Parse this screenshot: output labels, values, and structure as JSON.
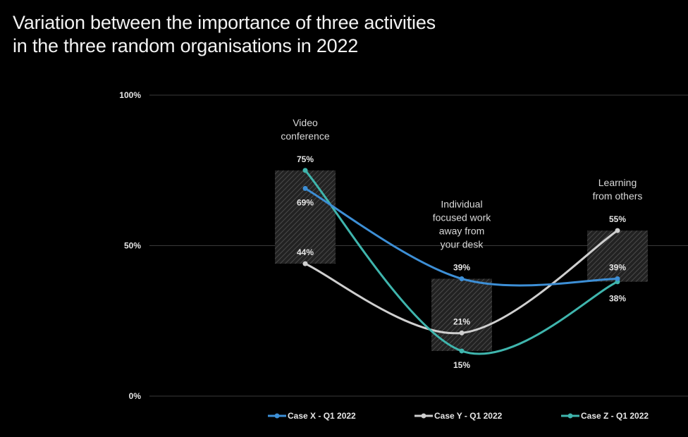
{
  "title_lines": [
    "Variation between the importance of three activities",
    "in the three random organisations in 2022"
  ],
  "chart_data": {
    "type": "line",
    "title": "Variation between the importance of three activities in the three random organisations in 2022",
    "ylim": [
      0,
      100
    ],
    "yticks": [
      "0%",
      "50%",
      "100%"
    ],
    "grid": true,
    "legend_position": "bottom",
    "categories": [
      [
        "Video",
        "conference"
      ],
      [
        "Individual",
        "focused work",
        "away from",
        "your desk"
      ],
      [
        "Learning",
        "from others"
      ]
    ],
    "series": [
      {
        "name": "Case X - Q1 2022",
        "color": "#3d8fd6",
        "values": [
          69,
          39,
          39
        ],
        "labels": [
          "69%",
          "39%",
          "39%"
        ]
      },
      {
        "name": "Case Y - Q1 2022",
        "color": "#cfcfcf",
        "values": [
          44,
          21,
          55
        ],
        "labels": [
          "44%",
          "21%",
          "55%"
        ]
      },
      {
        "name": "Case Z - Q1 2022",
        "color": "#3fb5ad",
        "values": [
          75,
          15,
          38
        ],
        "labels": [
          "75%",
          "15%",
          "38%"
        ]
      }
    ]
  }
}
